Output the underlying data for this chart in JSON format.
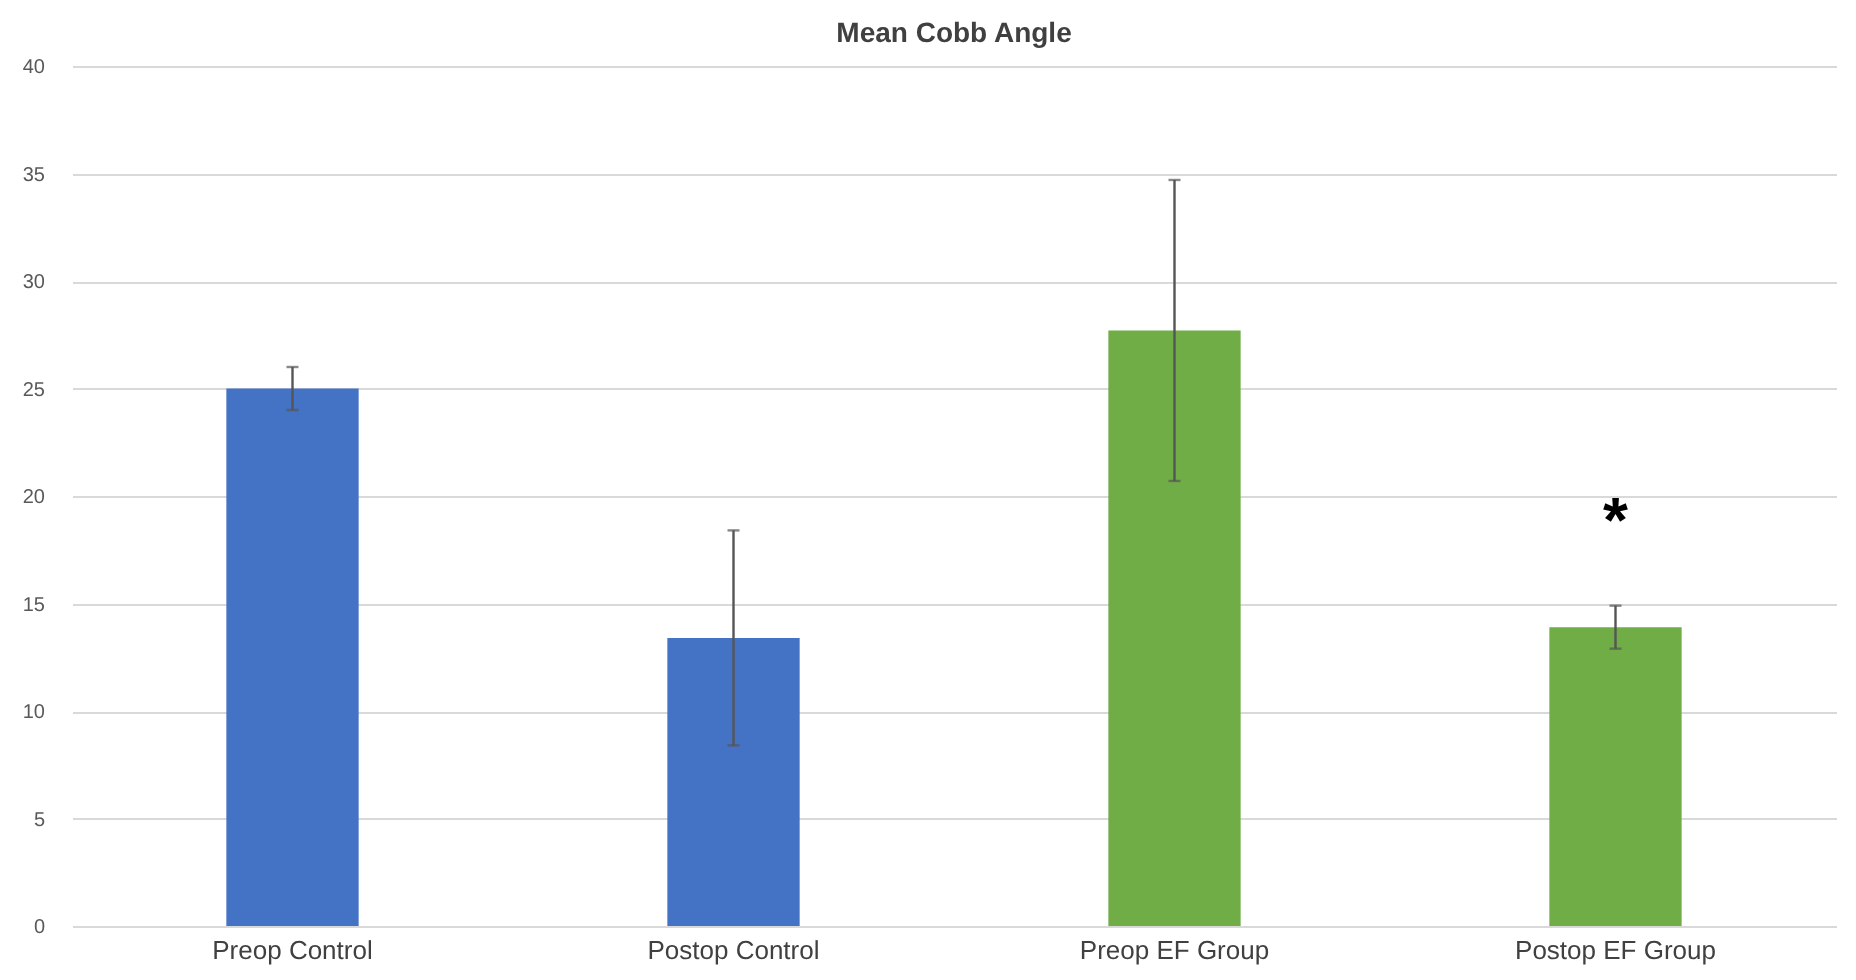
{
  "chart_data": {
    "type": "bar",
    "title": "Mean Cobb Angle",
    "categories": [
      "Preop Control",
      "Postop Control",
      "Preop EF Group",
      "Postop EF Group"
    ],
    "values": [
      25.0,
      13.4,
      27.7,
      13.9
    ],
    "errors": [
      1.0,
      5.0,
      7.0,
      1.0
    ],
    "colors": [
      "#4472c4",
      "#4472c4",
      "#70ad47",
      "#70ad47"
    ],
    "ylim": [
      0,
      40
    ],
    "yticks": [
      0,
      5,
      10,
      15,
      20,
      25,
      30,
      35,
      40
    ],
    "grid": "y",
    "annotations": [
      "*"
    ]
  }
}
